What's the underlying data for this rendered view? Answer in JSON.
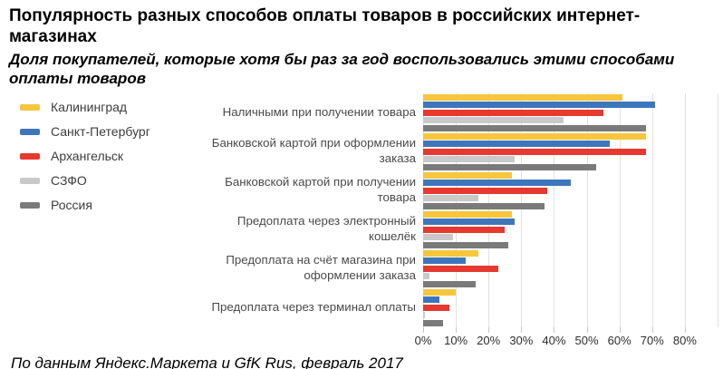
{
  "header": {
    "title": "Популярность разных способов оплаты товаров в российских интернет-магазинах",
    "subtitle": "Доля покупателей, которые хотя бы раз за год воспользовались этими способами оплаты товаров"
  },
  "footer": {
    "source": "По данным Яндекс.Маркета и GfK Rus, февраль 2017"
  },
  "chart_data": {
    "type": "bar",
    "orientation": "horizontal",
    "title": "Популярность разных способов оплаты товаров в российских интернет-магазинах",
    "subtitle": "Доля покупателей, которые хотя бы раз за год воспользовались этими способами оплаты товаров",
    "categories": [
      "Наличными при получении товара",
      "Банковской картой при оформлении заказа",
      "Банковской картой при получении товара",
      "Предоплата через электронный кошелёк",
      "Предоплата на счёт магазина при оформлении заказа",
      "Предоплата через терминал оплаты"
    ],
    "series": [
      {
        "name": "Калининград",
        "color": "#f7c63d",
        "values": [
          61,
          68,
          27,
          27,
          17,
          10
        ]
      },
      {
        "name": "Санкт-Петербург",
        "color": "#3e76bc",
        "values": [
          71,
          57,
          45,
          28,
          13,
          5
        ]
      },
      {
        "name": "Архангельск",
        "color": "#e6392f",
        "values": [
          55,
          68,
          38,
          25,
          23,
          8
        ]
      },
      {
        "name": "СЗФО",
        "color": "#c9c9c9",
        "values": [
          43,
          28,
          17,
          9,
          2,
          0.5
        ]
      },
      {
        "name": "Россия",
        "color": "#7a7a7a",
        "values": [
          68,
          53,
          37,
          26,
          16,
          6
        ]
      }
    ],
    "value_unit": "%",
    "xlim": [
      0,
      80
    ],
    "plot_span": 90,
    "ticks": [
      "0%",
      "10%",
      "20%",
      "30%",
      "40%",
      "50%",
      "60%",
      "70%",
      "80%"
    ],
    "grid": true,
    "legend_position": "left"
  }
}
